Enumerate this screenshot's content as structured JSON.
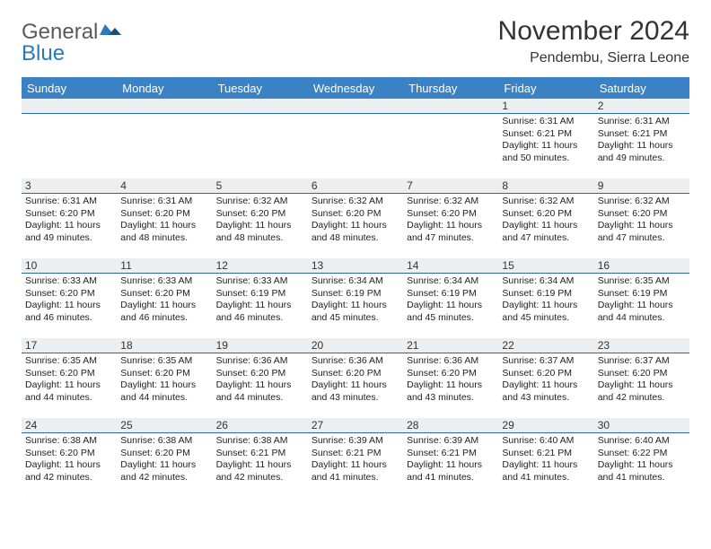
{
  "logo": {
    "word1": "General",
    "word2": "Blue"
  },
  "title": "November 2024",
  "location": "Pendembu, Sierra Leone",
  "colors": {
    "header_bg": "#3b82c4",
    "header_text": "#ffffff",
    "daynum_bg": "#eceff2",
    "border": "#2a6aa0",
    "text": "#333333",
    "logo_blue": "#2a7ab8",
    "logo_gray": "#5a5a5a"
  },
  "weekdays": [
    "Sunday",
    "Monday",
    "Tuesday",
    "Wednesday",
    "Thursday",
    "Friday",
    "Saturday"
  ],
  "weeks": [
    [
      null,
      null,
      null,
      null,
      null,
      {
        "n": "1",
        "sr": "Sunrise: 6:31 AM",
        "ss": "Sunset: 6:21 PM",
        "dl": "Daylight: 11 hours and 50 minutes."
      },
      {
        "n": "2",
        "sr": "Sunrise: 6:31 AM",
        "ss": "Sunset: 6:21 PM",
        "dl": "Daylight: 11 hours and 49 minutes."
      }
    ],
    [
      {
        "n": "3",
        "sr": "Sunrise: 6:31 AM",
        "ss": "Sunset: 6:20 PM",
        "dl": "Daylight: 11 hours and 49 minutes."
      },
      {
        "n": "4",
        "sr": "Sunrise: 6:31 AM",
        "ss": "Sunset: 6:20 PM",
        "dl": "Daylight: 11 hours and 48 minutes."
      },
      {
        "n": "5",
        "sr": "Sunrise: 6:32 AM",
        "ss": "Sunset: 6:20 PM",
        "dl": "Daylight: 11 hours and 48 minutes."
      },
      {
        "n": "6",
        "sr": "Sunrise: 6:32 AM",
        "ss": "Sunset: 6:20 PM",
        "dl": "Daylight: 11 hours and 48 minutes."
      },
      {
        "n": "7",
        "sr": "Sunrise: 6:32 AM",
        "ss": "Sunset: 6:20 PM",
        "dl": "Daylight: 11 hours and 47 minutes."
      },
      {
        "n": "8",
        "sr": "Sunrise: 6:32 AM",
        "ss": "Sunset: 6:20 PM",
        "dl": "Daylight: 11 hours and 47 minutes."
      },
      {
        "n": "9",
        "sr": "Sunrise: 6:32 AM",
        "ss": "Sunset: 6:20 PM",
        "dl": "Daylight: 11 hours and 47 minutes."
      }
    ],
    [
      {
        "n": "10",
        "sr": "Sunrise: 6:33 AM",
        "ss": "Sunset: 6:20 PM",
        "dl": "Daylight: 11 hours and 46 minutes."
      },
      {
        "n": "11",
        "sr": "Sunrise: 6:33 AM",
        "ss": "Sunset: 6:20 PM",
        "dl": "Daylight: 11 hours and 46 minutes."
      },
      {
        "n": "12",
        "sr": "Sunrise: 6:33 AM",
        "ss": "Sunset: 6:19 PM",
        "dl": "Daylight: 11 hours and 46 minutes."
      },
      {
        "n": "13",
        "sr": "Sunrise: 6:34 AM",
        "ss": "Sunset: 6:19 PM",
        "dl": "Daylight: 11 hours and 45 minutes."
      },
      {
        "n": "14",
        "sr": "Sunrise: 6:34 AM",
        "ss": "Sunset: 6:19 PM",
        "dl": "Daylight: 11 hours and 45 minutes."
      },
      {
        "n": "15",
        "sr": "Sunrise: 6:34 AM",
        "ss": "Sunset: 6:19 PM",
        "dl": "Daylight: 11 hours and 45 minutes."
      },
      {
        "n": "16",
        "sr": "Sunrise: 6:35 AM",
        "ss": "Sunset: 6:19 PM",
        "dl": "Daylight: 11 hours and 44 minutes."
      }
    ],
    [
      {
        "n": "17",
        "sr": "Sunrise: 6:35 AM",
        "ss": "Sunset: 6:20 PM",
        "dl": "Daylight: 11 hours and 44 minutes."
      },
      {
        "n": "18",
        "sr": "Sunrise: 6:35 AM",
        "ss": "Sunset: 6:20 PM",
        "dl": "Daylight: 11 hours and 44 minutes."
      },
      {
        "n": "19",
        "sr": "Sunrise: 6:36 AM",
        "ss": "Sunset: 6:20 PM",
        "dl": "Daylight: 11 hours and 44 minutes."
      },
      {
        "n": "20",
        "sr": "Sunrise: 6:36 AM",
        "ss": "Sunset: 6:20 PM",
        "dl": "Daylight: 11 hours and 43 minutes."
      },
      {
        "n": "21",
        "sr": "Sunrise: 6:36 AM",
        "ss": "Sunset: 6:20 PM",
        "dl": "Daylight: 11 hours and 43 minutes."
      },
      {
        "n": "22",
        "sr": "Sunrise: 6:37 AM",
        "ss": "Sunset: 6:20 PM",
        "dl": "Daylight: 11 hours and 43 minutes."
      },
      {
        "n": "23",
        "sr": "Sunrise: 6:37 AM",
        "ss": "Sunset: 6:20 PM",
        "dl": "Daylight: 11 hours and 42 minutes."
      }
    ],
    [
      {
        "n": "24",
        "sr": "Sunrise: 6:38 AM",
        "ss": "Sunset: 6:20 PM",
        "dl": "Daylight: 11 hours and 42 minutes."
      },
      {
        "n": "25",
        "sr": "Sunrise: 6:38 AM",
        "ss": "Sunset: 6:20 PM",
        "dl": "Daylight: 11 hours and 42 minutes."
      },
      {
        "n": "26",
        "sr": "Sunrise: 6:38 AM",
        "ss": "Sunset: 6:21 PM",
        "dl": "Daylight: 11 hours and 42 minutes."
      },
      {
        "n": "27",
        "sr": "Sunrise: 6:39 AM",
        "ss": "Sunset: 6:21 PM",
        "dl": "Daylight: 11 hours and 41 minutes."
      },
      {
        "n": "28",
        "sr": "Sunrise: 6:39 AM",
        "ss": "Sunset: 6:21 PM",
        "dl": "Daylight: 11 hours and 41 minutes."
      },
      {
        "n": "29",
        "sr": "Sunrise: 6:40 AM",
        "ss": "Sunset: 6:21 PM",
        "dl": "Daylight: 11 hours and 41 minutes."
      },
      {
        "n": "30",
        "sr": "Sunrise: 6:40 AM",
        "ss": "Sunset: 6:22 PM",
        "dl": "Daylight: 11 hours and 41 minutes."
      }
    ]
  ]
}
